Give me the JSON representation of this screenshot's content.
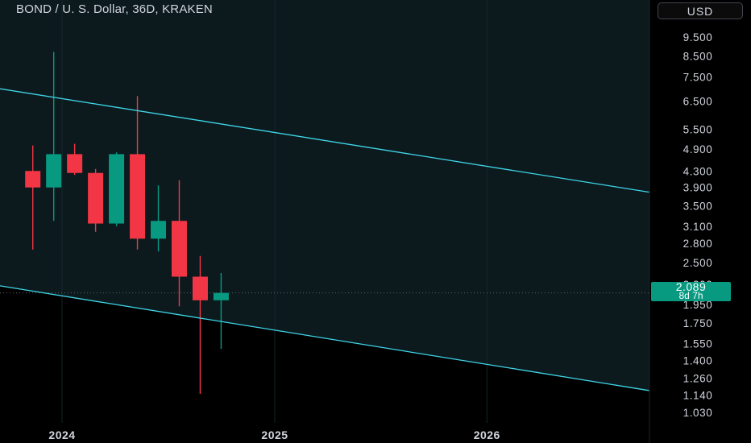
{
  "header": {
    "title": "BOND / U. S. Dollar, 36D, KRAKEN",
    "currency_button": "USD"
  },
  "last_price": {
    "value": "2.089",
    "countdown": "8d 7h",
    "color": "#089981"
  },
  "colors": {
    "background_top": "#0d1d22",
    "background_bottom": "#000000",
    "up": "#089981",
    "down": "#f23645",
    "channel": "#3fd6e8",
    "axis_text": "#d1d4dc",
    "grid": "#1a2a2e"
  },
  "chart_data": {
    "type": "candlestick",
    "title": "BOND / U. S. Dollar, 36D, KRAKEN",
    "x_axis_labels": [
      "2024",
      "2025",
      "2026"
    ],
    "y_scale": "log",
    "ylim": [
      0.95,
      10.3
    ],
    "y_tick_labels": [
      "9.500",
      "8.500",
      "7.500",
      "6.500",
      "5.500",
      "4.900",
      "4.300",
      "3.900",
      "3.500",
      "3.100",
      "2.800",
      "2.500",
      "2.200",
      "1.950",
      "1.750",
      "1.550",
      "1.400",
      "1.260",
      "1.140",
      "1.030"
    ],
    "candles": [
      {
        "date": "2023-11-11",
        "open": 4.3,
        "high": 5.0,
        "low": 2.7,
        "close": 3.9
      },
      {
        "date": "2023-12-17",
        "open": 3.9,
        "high": 8.7,
        "low": 3.2,
        "close": 4.75
      },
      {
        "date": "2024-01-22",
        "open": 4.75,
        "high": 5.05,
        "low": 4.2,
        "close": 4.25
      },
      {
        "date": "2024-02-27",
        "open": 4.25,
        "high": 4.35,
        "low": 3.0,
        "close": 3.15
      },
      {
        "date": "2024-04-03",
        "open": 3.15,
        "high": 4.8,
        "low": 3.1,
        "close": 4.75
      },
      {
        "date": "2024-05-09",
        "open": 4.75,
        "high": 6.7,
        "low": 2.7,
        "close": 2.88
      },
      {
        "date": "2024-06-14",
        "open": 2.88,
        "high": 3.95,
        "low": 2.67,
        "close": 3.2
      },
      {
        "date": "2024-07-20",
        "open": 3.2,
        "high": 4.07,
        "low": 1.93,
        "close": 2.3
      },
      {
        "date": "2024-08-25",
        "open": 2.3,
        "high": 2.6,
        "low": 1.15,
        "close": 2.0
      },
      {
        "date": "2024-09-30",
        "open": 2.0,
        "high": 2.35,
        "low": 1.5,
        "close": 2.089
      }
    ],
    "channel_lines": [
      {
        "name": "upper",
        "from": {
          "date": "2023-09-15",
          "value": 7.0
        },
        "to": {
          "date": "2026-09-10",
          "value": 3.85
        }
      },
      {
        "date_note": "",
        "name": "lower",
        "from": {
          "date": "2023-09-15",
          "value": 2.18
        },
        "to": {
          "date": "2026-09-10",
          "value": 1.19
        }
      }
    ],
    "last_price_line": 2.089
  }
}
